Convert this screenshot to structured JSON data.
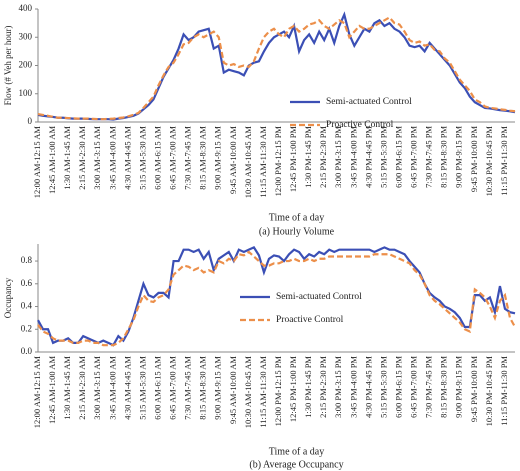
{
  "chart_data": [
    {
      "type": "line",
      "title": "(a) Hourly Volume",
      "x_label": "Time of a day",
      "y_label": "Flow (# Veh per hour)",
      "categories": [
        "12:00 AM-12:15 AM",
        null,
        null,
        "12:45 AM-1:00 AM",
        null,
        null,
        "1:30 AM-1:45 AM",
        null,
        null,
        "2:15 AM-2:30 AM",
        null,
        null,
        "3:00 AM-3:15 AM",
        null,
        null,
        "3:45 AM-4:00 AM",
        null,
        null,
        "4:30 AM-4:45 AM",
        null,
        null,
        "5:15 AM-5:30 AM",
        null,
        null,
        "6:00 AM-6:15 AM",
        null,
        null,
        "6:45 AM-7:00 AM",
        null,
        null,
        "7:30 AM-7:45 AM",
        null,
        null,
        "8:15 AM-8:30 AM",
        null,
        null,
        "9:00 AM-9:15 AM",
        null,
        null,
        "9:45 AM-10:00 AM",
        null,
        null,
        "10:30 AM-10:45 AM",
        null,
        null,
        "11:15 AM-11:30 AM",
        null,
        null,
        "12:00 PM-12:15 PM",
        null,
        null,
        "12:45 PM-1:00 PM",
        null,
        null,
        "1:30 PM-1:45 PM",
        null,
        null,
        "2:15 PM-2:30 PM",
        null,
        null,
        "3:00 PM-3:15 PM",
        null,
        null,
        "3:45 PM-4:00 PM",
        null,
        null,
        "4:30 PM-4:45 PM",
        null,
        null,
        "5:15 PM-5:30 PM",
        null,
        null,
        "6:00 PM-6:15 PM",
        null,
        null,
        "6:45 PM-7:00 PM",
        null,
        null,
        "7:30 PM-7:45 PM",
        null,
        null,
        "8:15 PM-8:30 PM",
        null,
        null,
        "9:00 PM-9:15 PM",
        null,
        null,
        "9:45 PM-10:00 PM",
        null,
        null,
        "10:30 PM-10:45 PM",
        null,
        null,
        "11:15 PM-11:30 PM",
        null,
        null
      ],
      "ylim": [
        0,
        400
      ],
      "yticks": [
        0,
        100,
        200,
        300,
        400
      ],
      "legend": "lower center",
      "series": [
        {
          "name": "Semi-actuated Control",
          "color": "#3b4fb5",
          "dash": false,
          "values": [
            25,
            22,
            20,
            18,
            15,
            15,
            13,
            12,
            12,
            12,
            11,
            10,
            10,
            10,
            10,
            9,
            12,
            14,
            18,
            22,
            30,
            45,
            60,
            80,
            120,
            160,
            190,
            220,
            260,
            310,
            290,
            300,
            320,
            325,
            330,
            260,
            270,
            175,
            185,
            180,
            175,
            165,
            200,
            210,
            215,
            250,
            280,
            300,
            310,
            320,
            300,
            340,
            250,
            290,
            310,
            280,
            320,
            290,
            330,
            280,
            340,
            380,
            310,
            270,
            300,
            330,
            320,
            350,
            360,
            340,
            350,
            330,
            320,
            300,
            270,
            265,
            270,
            250,
            280,
            260,
            240,
            220,
            200,
            170,
            140,
            120,
            90,
            70,
            60,
            50,
            48,
            45,
            42,
            40,
            38,
            35
          ]
        },
        {
          "name": "Proactive Control",
          "color": "#ec8f4a",
          "dash": true,
          "values": [
            28,
            25,
            22,
            18,
            15,
            15,
            14,
            13,
            12,
            12,
            12,
            11,
            10,
            10,
            11,
            12,
            14,
            16,
            20,
            25,
            32,
            50,
            70,
            90,
            130,
            165,
            195,
            210,
            240,
            275,
            280,
            300,
            310,
            300,
            310,
            320,
            300,
            210,
            200,
            205,
            195,
            200,
            195,
            215,
            260,
            300,
            320,
            330,
            310,
            300,
            330,
            340,
            320,
            330,
            345,
            350,
            360,
            340,
            330,
            345,
            360,
            350,
            300,
            320,
            340,
            330,
            330,
            340,
            350,
            360,
            370,
            350,
            345,
            320,
            290,
            280,
            285,
            270,
            275,
            255,
            250,
            225,
            210,
            180,
            150,
            130,
            110,
            80,
            70,
            55,
            50,
            48,
            45,
            43,
            40,
            38
          ]
        }
      ]
    },
    {
      "type": "line",
      "title": "(b) Average Occupancy",
      "x_label": "Time of a day",
      "y_label": "Occupancy",
      "categories": [
        "12:00 AM-12:15 AM",
        null,
        null,
        "12:45 AM-1:00 AM",
        null,
        null,
        "1:30 AM-1:45 AM",
        null,
        null,
        "2:15 AM-2:30 AM",
        null,
        null,
        "3:00 AM-3:15 AM",
        null,
        null,
        "3:45 AM-4:00 AM",
        null,
        null,
        "4:30 AM-4:45 AM",
        null,
        null,
        "5:15 AM-5:30 AM",
        null,
        null,
        "6:00 AM-6:15 AM",
        null,
        null,
        "6:45 AM-7:00 AM",
        null,
        null,
        "7:30 AM-7:45 AM",
        null,
        null,
        "8:15 AM-8:30 AM",
        null,
        null,
        "9:00 AM-9:15 AM",
        null,
        null,
        "9:45 AM-10:00 AM",
        null,
        null,
        "10:30 AM-10:45 AM",
        null,
        null,
        "11:15 AM-11:30 AM",
        null,
        null,
        "12:00 PM-12:15 PM",
        null,
        null,
        "12:45 PM-1:00 PM",
        null,
        null,
        "1:30 PM-1:45 PM",
        null,
        null,
        "2:15 PM-2:30 PM",
        null,
        null,
        "3:00 PM-3:15 PM",
        null,
        null,
        "3:45 PM-4:00 PM",
        null,
        null,
        "4:30 PM-4:45 PM",
        null,
        null,
        "5:15 PM-5:30 PM",
        null,
        null,
        "6:00 PM-6:15 PM",
        null,
        null,
        "6:45 PM-7:00 PM",
        null,
        null,
        "7:30 PM-7:45 PM",
        null,
        null,
        "8:15 PM-8:30 PM",
        null,
        null,
        "9:00 PM-9:15 PM",
        null,
        null,
        "9:45 PM-10:00 PM",
        null,
        null,
        "10:30 PM-10:45 PM",
        null,
        null,
        "11:15 PM-11:30 PM",
        null,
        null
      ],
      "ylim": [
        0,
        0.95
      ],
      "yticks": [
        {
          "value": 0,
          "label": "0.0"
        },
        0.2,
        0.4,
        0.6,
        0.8
      ],
      "legend": "center",
      "series": [
        {
          "name": "Semi-actuated Control",
          "color": "#3b4fb5",
          "dash": false,
          "values": [
            0.28,
            0.2,
            0.2,
            0.08,
            0.1,
            0.1,
            0.12,
            0.08,
            0.08,
            0.14,
            0.12,
            0.1,
            0.08,
            0.1,
            0.08,
            0.06,
            0.14,
            0.1,
            0.18,
            0.3,
            0.45,
            0.6,
            0.5,
            0.48,
            0.52,
            0.52,
            0.48,
            0.8,
            0.8,
            0.9,
            0.9,
            0.88,
            0.9,
            0.82,
            0.88,
            0.72,
            0.82,
            0.85,
            0.88,
            0.8,
            0.9,
            0.88,
            0.9,
            0.92,
            0.85,
            0.7,
            0.82,
            0.85,
            0.84,
            0.8,
            0.86,
            0.9,
            0.88,
            0.82,
            0.86,
            0.84,
            0.88,
            0.86,
            0.9,
            0.88,
            0.9,
            0.9,
            0.9,
            0.9,
            0.9,
            0.9,
            0.9,
            0.88,
            0.9,
            0.92,
            0.9,
            0.9,
            0.88,
            0.86,
            0.8,
            0.75,
            0.7,
            0.6,
            0.52,
            0.48,
            0.45,
            0.4,
            0.38,
            0.35,
            0.3,
            0.22,
            0.22,
            0.5,
            0.5,
            0.45,
            0.48,
            0.35,
            0.58,
            0.38,
            0.35,
            0.34
          ]
        },
        {
          "name": "Proactive Control",
          "color": "#ec8f4a",
          "dash": true,
          "values": [
            0.24,
            0.18,
            0.16,
            0.12,
            0.1,
            0.1,
            0.1,
            0.08,
            0.08,
            0.1,
            0.1,
            0.08,
            0.08,
            0.06,
            0.06,
            0.06,
            0.08,
            0.12,
            0.2,
            0.28,
            0.4,
            0.5,
            0.45,
            0.44,
            0.48,
            0.5,
            0.55,
            0.68,
            0.72,
            0.76,
            0.75,
            0.72,
            0.74,
            0.7,
            0.72,
            0.7,
            0.8,
            0.78,
            0.82,
            0.8,
            0.86,
            0.85,
            0.88,
            0.84,
            0.8,
            0.76,
            0.76,
            0.78,
            0.78,
            0.8,
            0.8,
            0.82,
            0.8,
            0.8,
            0.82,
            0.8,
            0.82,
            0.82,
            0.84,
            0.84,
            0.84,
            0.84,
            0.84,
            0.84,
            0.84,
            0.84,
            0.84,
            0.86,
            0.86,
            0.86,
            0.86,
            0.84,
            0.82,
            0.8,
            0.78,
            0.72,
            0.68,
            0.6,
            0.5,
            0.45,
            0.42,
            0.38,
            0.34,
            0.3,
            0.26,
            0.2,
            0.18,
            0.55,
            0.52,
            0.48,
            0.4,
            0.3,
            0.45,
            0.5,
            0.3,
            0.22
          ]
        }
      ]
    }
  ]
}
